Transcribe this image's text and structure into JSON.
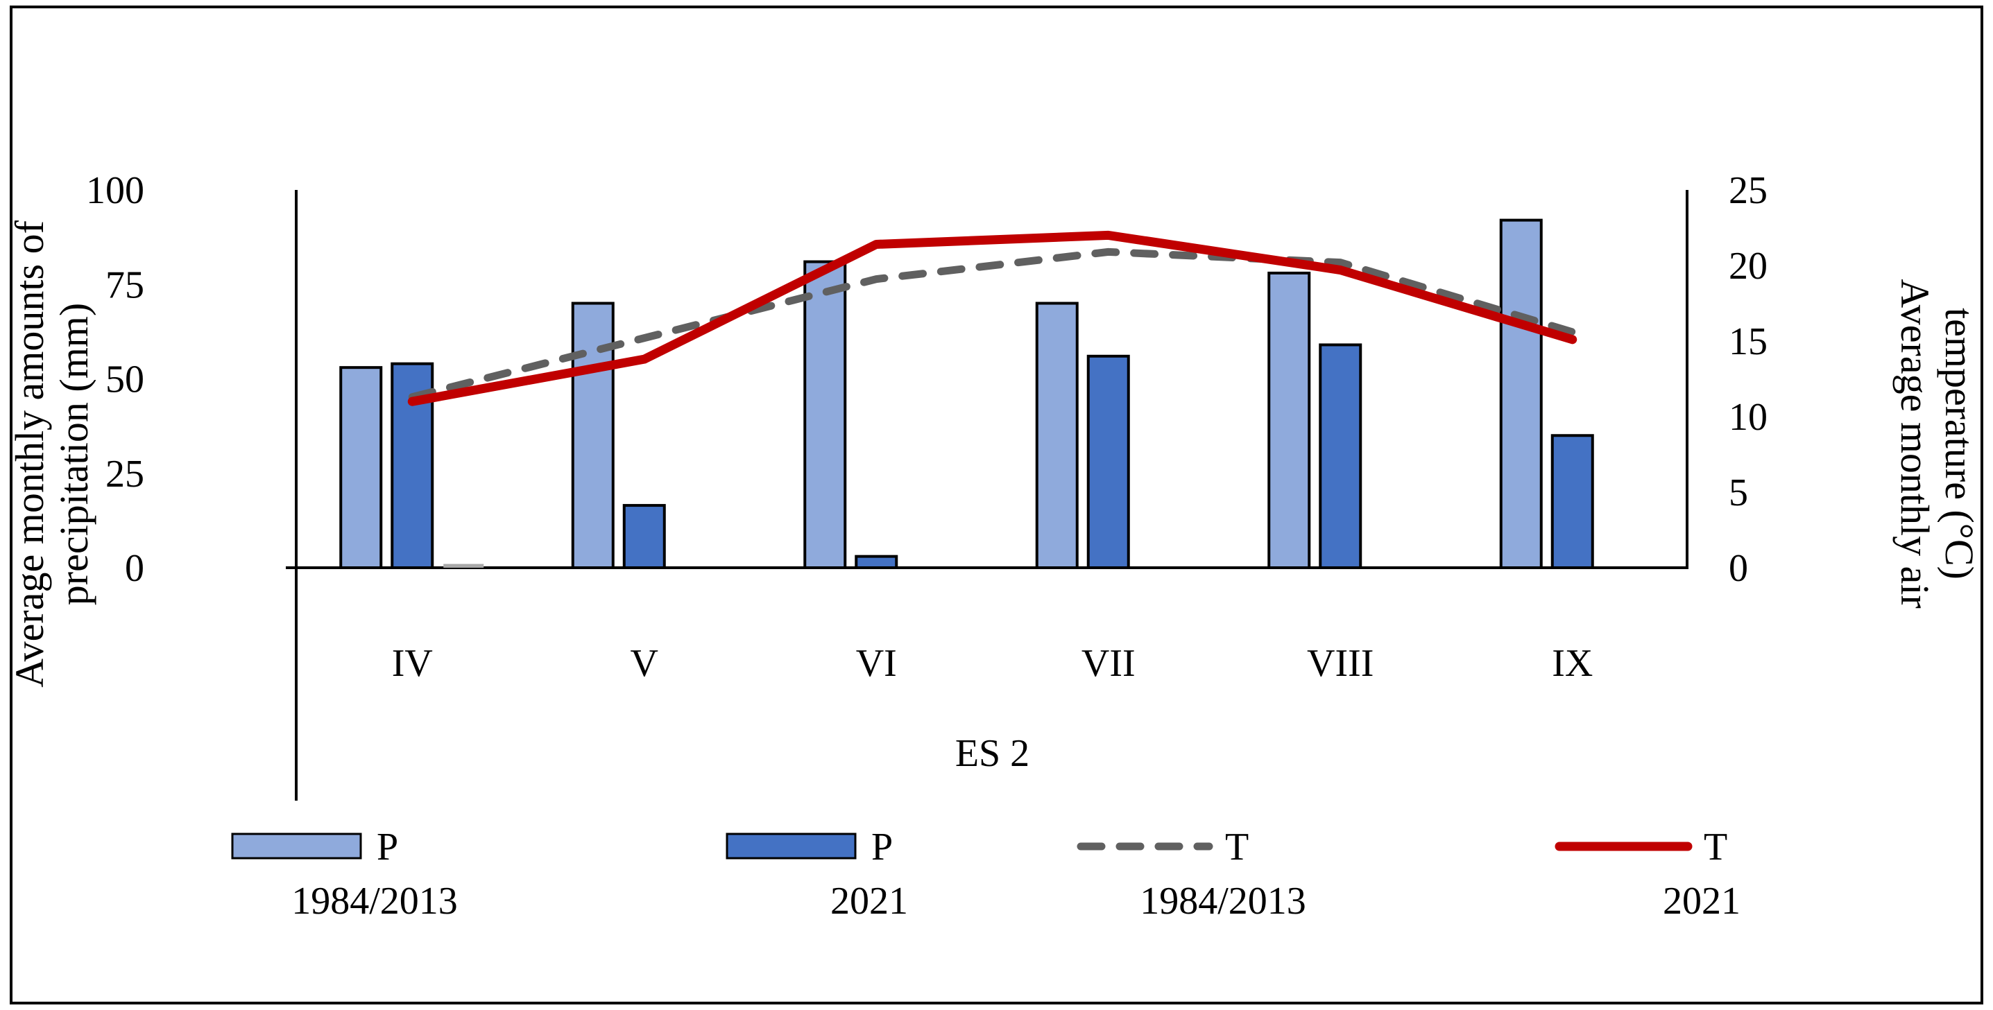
{
  "figure": {
    "background": "#FFFFFF",
    "border_color": "#000000"
  },
  "chart_data": {
    "type": "combo",
    "subtype": "grouped-bars-with-lines",
    "categories": [
      "IV",
      "V",
      "VI",
      "VII",
      "VIII",
      "IX"
    ],
    "xlabel": "ES 2",
    "grid": "off",
    "legend_position": "bottom",
    "y_left": {
      "title_lines": [
        "Average monthly amounts of",
        "precipitation (mm)"
      ],
      "ticks": [
        0,
        25,
        50,
        75,
        100
      ],
      "range": [
        0,
        100
      ]
    },
    "y_right": {
      "title_lines": [
        "Average monthly air",
        "temperature (°C)"
      ],
      "ticks": [
        0,
        5,
        10,
        15,
        20,
        25
      ],
      "range": [
        0,
        25
      ]
    },
    "bar_series": [
      {
        "name": "P 1984/2013",
        "axis": "left",
        "color": "#8FAADC",
        "border": "#000000",
        "values": [
          53,
          70,
          81,
          70,
          78,
          92
        ]
      },
      {
        "name": "P 2021",
        "axis": "left",
        "color": "#4472C4",
        "border": "#000000",
        "values": [
          54,
          16.5,
          3,
          56,
          59,
          35
        ]
      },
      {
        "name": "",
        "axis": "left",
        "color": "#A9A9A9",
        "border": "none",
        "values": [
          1,
          0,
          0,
          0,
          0,
          0
        ]
      }
    ],
    "line_series": [
      {
        "name": "T 1984/2013",
        "axis": "right",
        "color": "#606060",
        "style": "dashed",
        "values": [
          11.3,
          15.2,
          19.1,
          20.9,
          20.2,
          15.6
        ]
      },
      {
        "name": "T 2021",
        "axis": "right",
        "color": "#C00000",
        "style": "solid",
        "values": [
          11,
          13.8,
          21.4,
          22,
          19.7,
          15.1
        ]
      }
    ],
    "legend": [
      {
        "swatch": "bar",
        "color": "#8FAADC",
        "label": "P",
        "sublabel": "1984/2013"
      },
      {
        "swatch": "bar",
        "color": "#4472C4",
        "label": "P",
        "sublabel": "2021"
      },
      {
        "swatch": "dashed-line",
        "color": "#606060",
        "label": "T",
        "sublabel": "1984/2013"
      },
      {
        "swatch": "solid-line",
        "color": "#C00000",
        "label": "T",
        "sublabel": "2021"
      }
    ]
  }
}
